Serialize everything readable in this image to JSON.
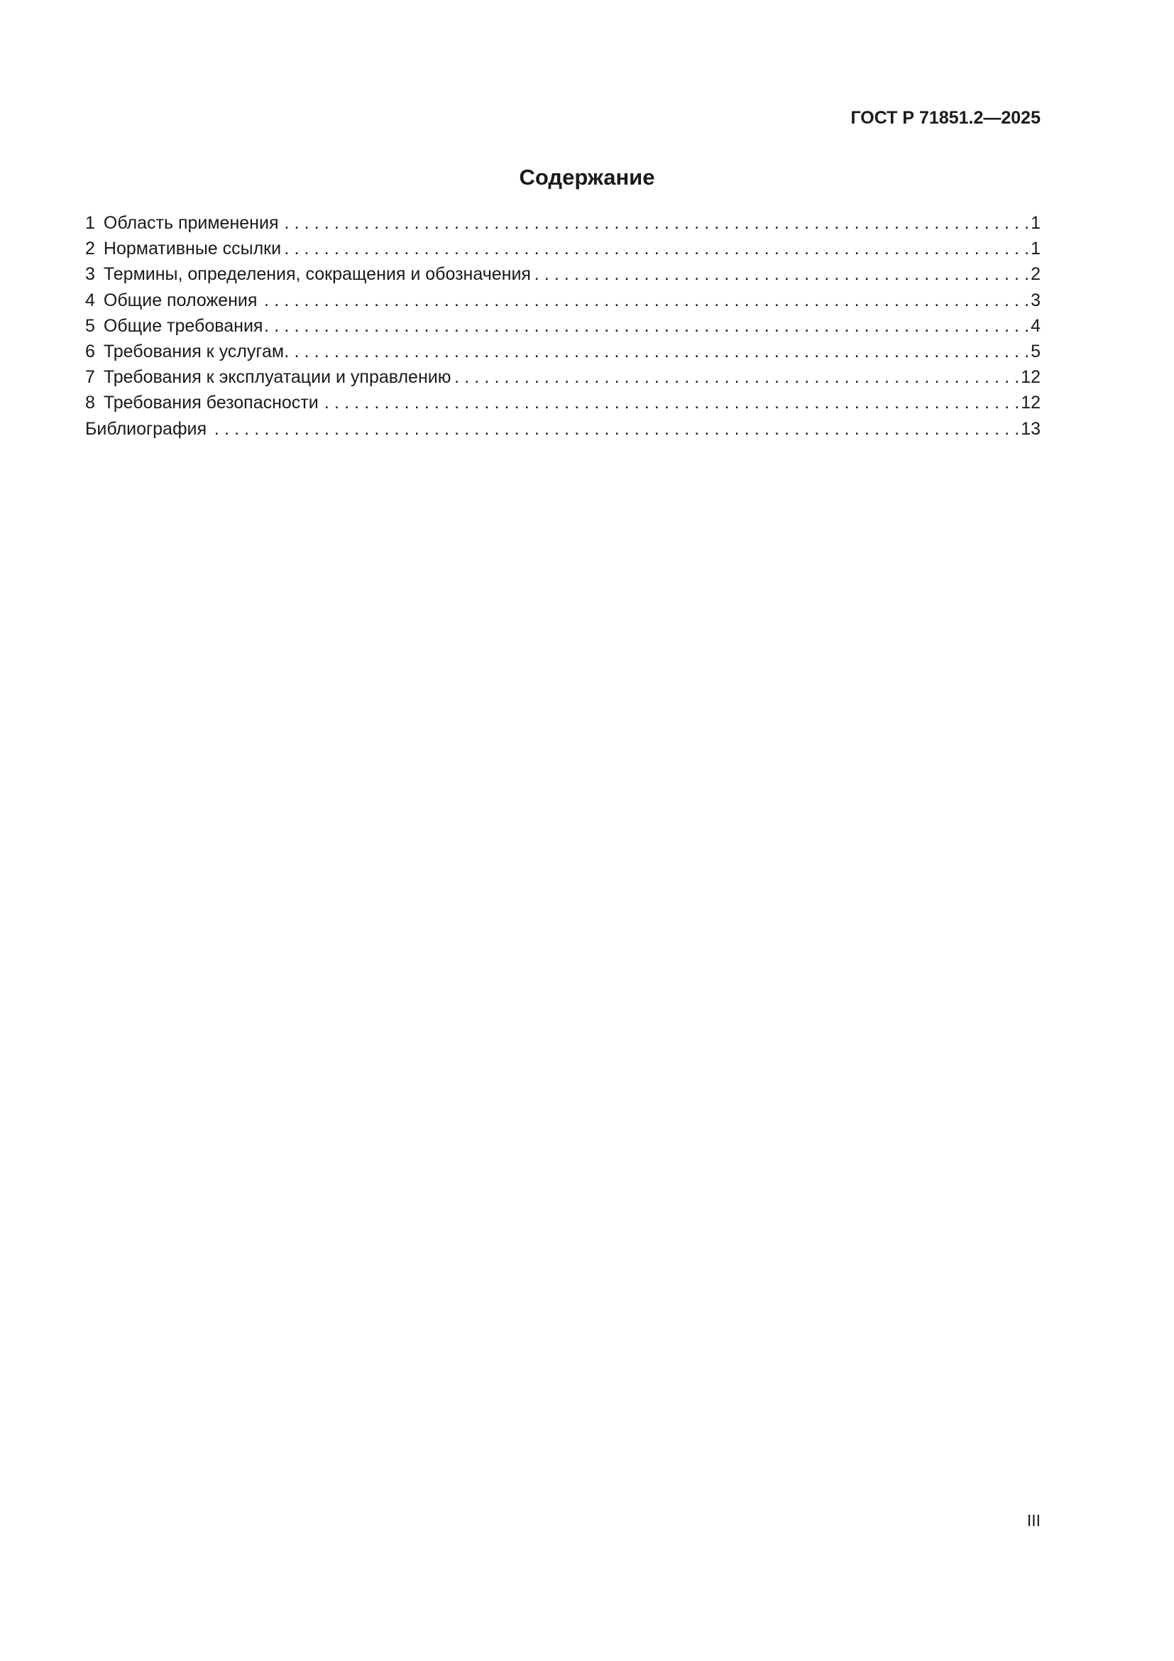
{
  "header": {
    "document_code": "ГОСТ Р 71851.2—2025"
  },
  "title": "Содержание",
  "toc": [
    {
      "number": "1",
      "label": "Область применения",
      "page": "1"
    },
    {
      "number": "2",
      "label": "Нормативные ссылки",
      "page": "1"
    },
    {
      "number": "3",
      "label": "Термины, определения, сокращения и обозначения",
      "page": "2"
    },
    {
      "number": "4",
      "label": "Общие положения",
      "page": "3"
    },
    {
      "number": "5",
      "label": "Общие требования",
      "page": "4"
    },
    {
      "number": "6",
      "label": "Требования к услугам",
      "page": "5"
    },
    {
      "number": "7",
      "label": "Требования к эксплуатации и управлению",
      "page": "12"
    },
    {
      "number": "8",
      "label": "Требования безопасности",
      "page": "12"
    },
    {
      "number": "",
      "label": "Библиография",
      "page": "13"
    }
  ],
  "footer": {
    "page_number": "III"
  }
}
